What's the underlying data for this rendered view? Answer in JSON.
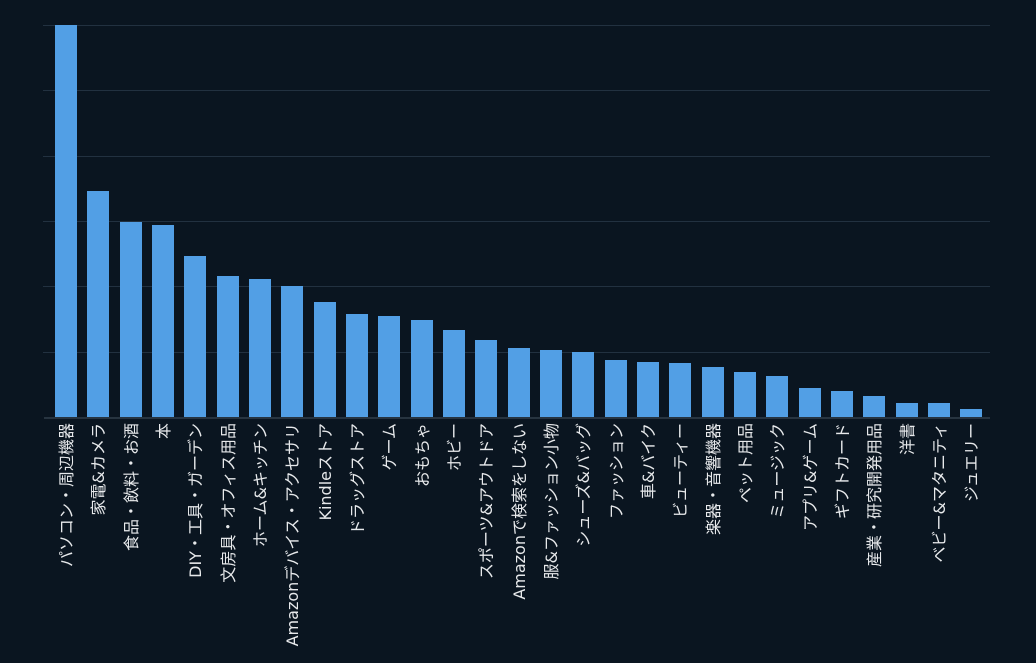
{
  "chart_data": {
    "type": "bar",
    "title": "",
    "xlabel": "",
    "ylabel": "",
    "y_tick_labels_visible": false,
    "legend": "none",
    "grid": true,
    "gridline_step": 100,
    "ylim": [
      0,
      600
    ],
    "categories": [
      "パソコン・周辺機器",
      "家電&カメラ",
      "食品・飲料・お酒",
      "本",
      "DIY・工具・ガーデン",
      "文房具・オフィス用品",
      "ホーム&キッチン",
      "Amazonデバイス・アクセサリ",
      "Kindleストア",
      "ドラッグストア",
      "ゲーム",
      "おもちゃ",
      "ホビー",
      "スポーツ&アウトドア",
      "Amazonで検索をしない",
      "服&ファッション小物",
      "シューズ&バッグ",
      "ファッション",
      "車&バイク",
      "ビューティー",
      "楽器・音響機器",
      "ペット用品",
      "ミュージック",
      "アプリ&ゲーム",
      "ギフトカード",
      "産業・研究開発用品",
      "洋書",
      "ベビー&マタニティ",
      "ジュエリー"
    ],
    "values": [
      600,
      346,
      298,
      294,
      247,
      216,
      211,
      200,
      176,
      157,
      155,
      148,
      133,
      118,
      106,
      103,
      100,
      87,
      84,
      83,
      77,
      69,
      63,
      45,
      40,
      32,
      22,
      22,
      12
    ],
    "colors": {
      "background": "#0a1520",
      "bar": "#529fe5",
      "gridline": "#223140",
      "axis": "#273440",
      "label_text": "#e7e9eb"
    }
  }
}
